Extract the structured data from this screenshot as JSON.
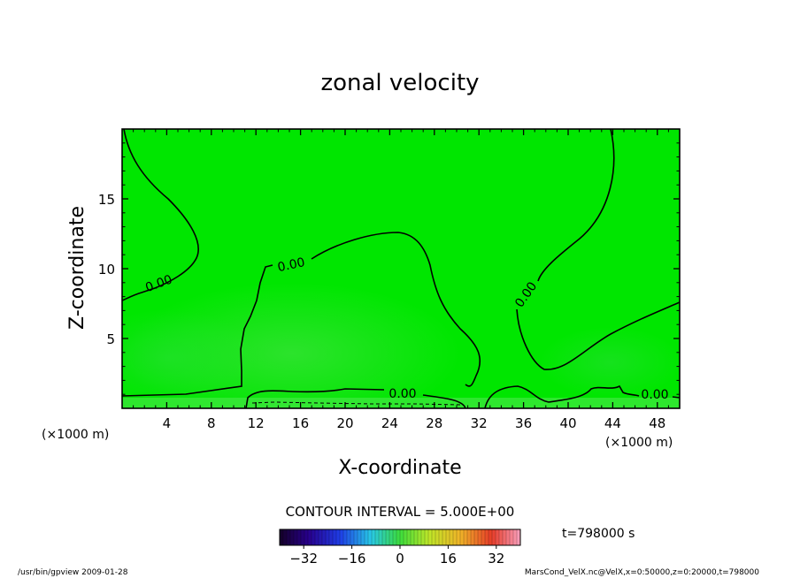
{
  "chart_data": {
    "type": "heatmap",
    "title": "zonal velocity",
    "xlabel": "X-coordinate",
    "ylabel": "Z-coordinate",
    "x_unit": "(×1000 m)",
    "y_unit": "(×1000 m)",
    "xlim": [
      0,
      50
    ],
    "ylim": [
      0,
      20
    ],
    "x_ticks": [
      4,
      8,
      12,
      16,
      20,
      24,
      28,
      32,
      36,
      40,
      44,
      48
    ],
    "y_ticks": [
      5,
      10,
      15
    ],
    "contour_interval_label": "CONTOUR INTERVAL = 5.000E+00",
    "contour_labels": [
      "0.00",
      "0.00",
      "0.00",
      "0.00",
      "0.00"
    ],
    "time_label": "t=798000 s",
    "colorbar": {
      "range": [
        -40,
        40
      ],
      "ticks": [
        -32,
        -16,
        0,
        16,
        32
      ],
      "colormap": "rainbow"
    },
    "field_value_range_estimate": [
      -5,
      5
    ],
    "colors": {
      "field_base": "#00e600",
      "field_light": "#3de83d",
      "contour": "#000000"
    },
    "footer_left": "/usr/bin/gpview   2009-01-28",
    "footer_right": "MarsCond_VelX.nc@VelX,x=0:50000,z=0:20000,t=798000"
  }
}
